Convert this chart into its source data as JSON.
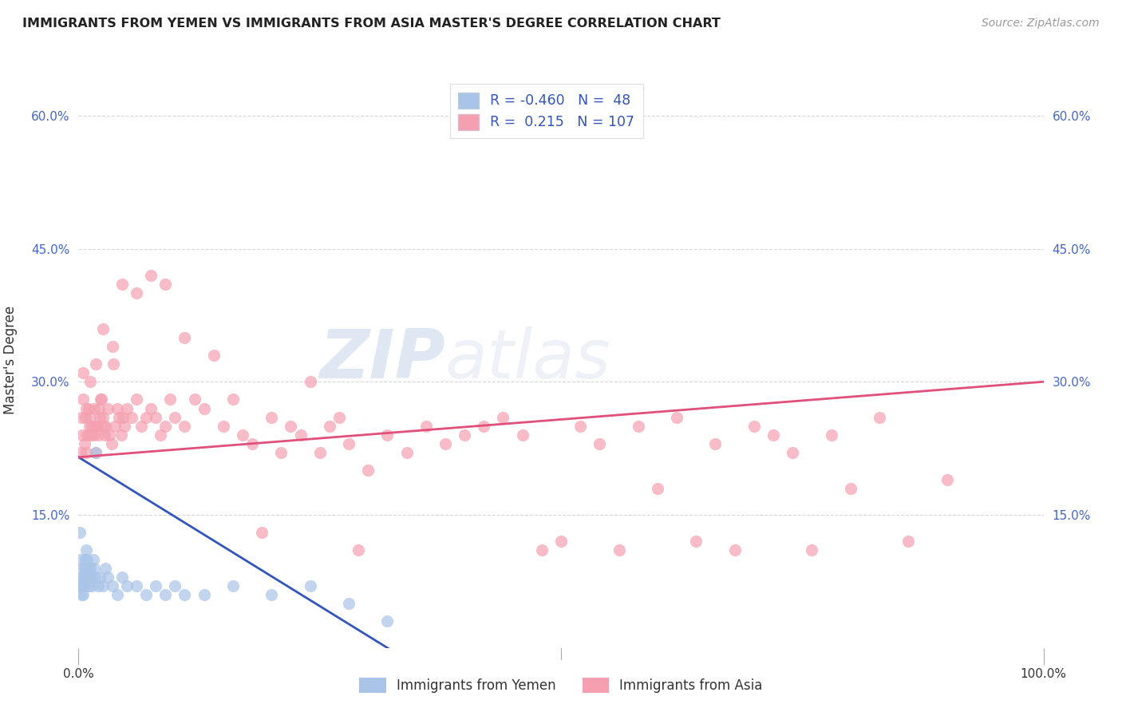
{
  "title": "IMMIGRANTS FROM YEMEN VS IMMIGRANTS FROM ASIA MASTER'S DEGREE CORRELATION CHART",
  "source": "Source: ZipAtlas.com",
  "ylabel": "Master's Degree",
  "xlim": [
    0.0,
    1.0
  ],
  "ylim": [
    0.0,
    0.65
  ],
  "xtick_positions": [
    0.0,
    1.0
  ],
  "xtick_labels": [
    "0.0%",
    "100.0%"
  ],
  "ytick_values": [
    0.15,
    0.3,
    0.45,
    0.6
  ],
  "ytick_labels": [
    "15.0%",
    "30.0%",
    "45.0%",
    "60.0%"
  ],
  "grid_color": "#cccccc",
  "background_color": "#ffffff",
  "legend_label1": "Immigrants from Yemen",
  "legend_label2": "Immigrants from Asia",
  "r1": "-0.460",
  "n1": "48",
  "r2": "0.215",
  "n2": "107",
  "color_yemen": "#aac4e8",
  "color_asia": "#f4a0b0",
  "line_color_yemen": "#3355bb",
  "line_color_asia": "#e0507a",
  "yemen_x": [
    0.001,
    0.002,
    0.002,
    0.003,
    0.003,
    0.004,
    0.004,
    0.005,
    0.005,
    0.006,
    0.006,
    0.007,
    0.007,
    0.008,
    0.008,
    0.009,
    0.009,
    0.01,
    0.01,
    0.011,
    0.012,
    0.013,
    0.014,
    0.015,
    0.016,
    0.017,
    0.018,
    0.02,
    0.022,
    0.025,
    0.028,
    0.03,
    0.035,
    0.04,
    0.045,
    0.05,
    0.06,
    0.07,
    0.08,
    0.09,
    0.1,
    0.11,
    0.13,
    0.16,
    0.2,
    0.24,
    0.28,
    0.32
  ],
  "yemen_y": [
    0.13,
    0.1,
    0.07,
    0.08,
    0.06,
    0.09,
    0.07,
    0.08,
    0.06,
    0.09,
    0.07,
    0.1,
    0.08,
    0.09,
    0.11,
    0.08,
    0.1,
    0.09,
    0.07,
    0.08,
    0.09,
    0.08,
    0.07,
    0.1,
    0.09,
    0.08,
    0.22,
    0.07,
    0.08,
    0.07,
    0.09,
    0.08,
    0.07,
    0.06,
    0.08,
    0.07,
    0.07,
    0.06,
    0.07,
    0.06,
    0.07,
    0.06,
    0.06,
    0.07,
    0.06,
    0.07,
    0.05,
    0.03
  ],
  "asia_x": [
    0.002,
    0.003,
    0.004,
    0.005,
    0.006,
    0.007,
    0.008,
    0.009,
    0.01,
    0.011,
    0.012,
    0.013,
    0.014,
    0.015,
    0.016,
    0.017,
    0.018,
    0.019,
    0.02,
    0.021,
    0.022,
    0.023,
    0.024,
    0.025,
    0.026,
    0.027,
    0.028,
    0.03,
    0.032,
    0.034,
    0.036,
    0.038,
    0.04,
    0.042,
    0.044,
    0.046,
    0.048,
    0.05,
    0.055,
    0.06,
    0.065,
    0.07,
    0.075,
    0.08,
    0.085,
    0.09,
    0.095,
    0.1,
    0.11,
    0.12,
    0.13,
    0.14,
    0.15,
    0.16,
    0.17,
    0.18,
    0.19,
    0.2,
    0.21,
    0.22,
    0.23,
    0.24,
    0.25,
    0.26,
    0.27,
    0.28,
    0.29,
    0.3,
    0.32,
    0.34,
    0.36,
    0.38,
    0.4,
    0.42,
    0.44,
    0.46,
    0.48,
    0.5,
    0.52,
    0.54,
    0.56,
    0.58,
    0.6,
    0.62,
    0.64,
    0.66,
    0.68,
    0.7,
    0.72,
    0.74,
    0.76,
    0.78,
    0.8,
    0.83,
    0.86,
    0.9,
    0.005,
    0.008,
    0.012,
    0.018,
    0.025,
    0.035,
    0.045,
    0.06,
    0.075,
    0.09,
    0.11
  ],
  "asia_y": [
    0.22,
    0.26,
    0.24,
    0.28,
    0.23,
    0.26,
    0.22,
    0.24,
    0.27,
    0.25,
    0.26,
    0.24,
    0.25,
    0.24,
    0.27,
    0.25,
    0.22,
    0.25,
    0.24,
    0.27,
    0.26,
    0.28,
    0.28,
    0.26,
    0.25,
    0.24,
    0.25,
    0.27,
    0.24,
    0.23,
    0.32,
    0.25,
    0.27,
    0.26,
    0.24,
    0.26,
    0.25,
    0.27,
    0.26,
    0.28,
    0.25,
    0.26,
    0.27,
    0.26,
    0.24,
    0.25,
    0.28,
    0.26,
    0.25,
    0.28,
    0.27,
    0.33,
    0.25,
    0.28,
    0.24,
    0.23,
    0.13,
    0.26,
    0.22,
    0.25,
    0.24,
    0.3,
    0.22,
    0.25,
    0.26,
    0.23,
    0.11,
    0.2,
    0.24,
    0.22,
    0.25,
    0.23,
    0.24,
    0.25,
    0.26,
    0.24,
    0.11,
    0.12,
    0.25,
    0.23,
    0.11,
    0.25,
    0.18,
    0.26,
    0.12,
    0.23,
    0.11,
    0.25,
    0.24,
    0.22,
    0.11,
    0.24,
    0.18,
    0.26,
    0.12,
    0.19,
    0.31,
    0.27,
    0.3,
    0.32,
    0.36,
    0.34,
    0.41,
    0.4,
    0.42,
    0.41,
    0.35
  ]
}
